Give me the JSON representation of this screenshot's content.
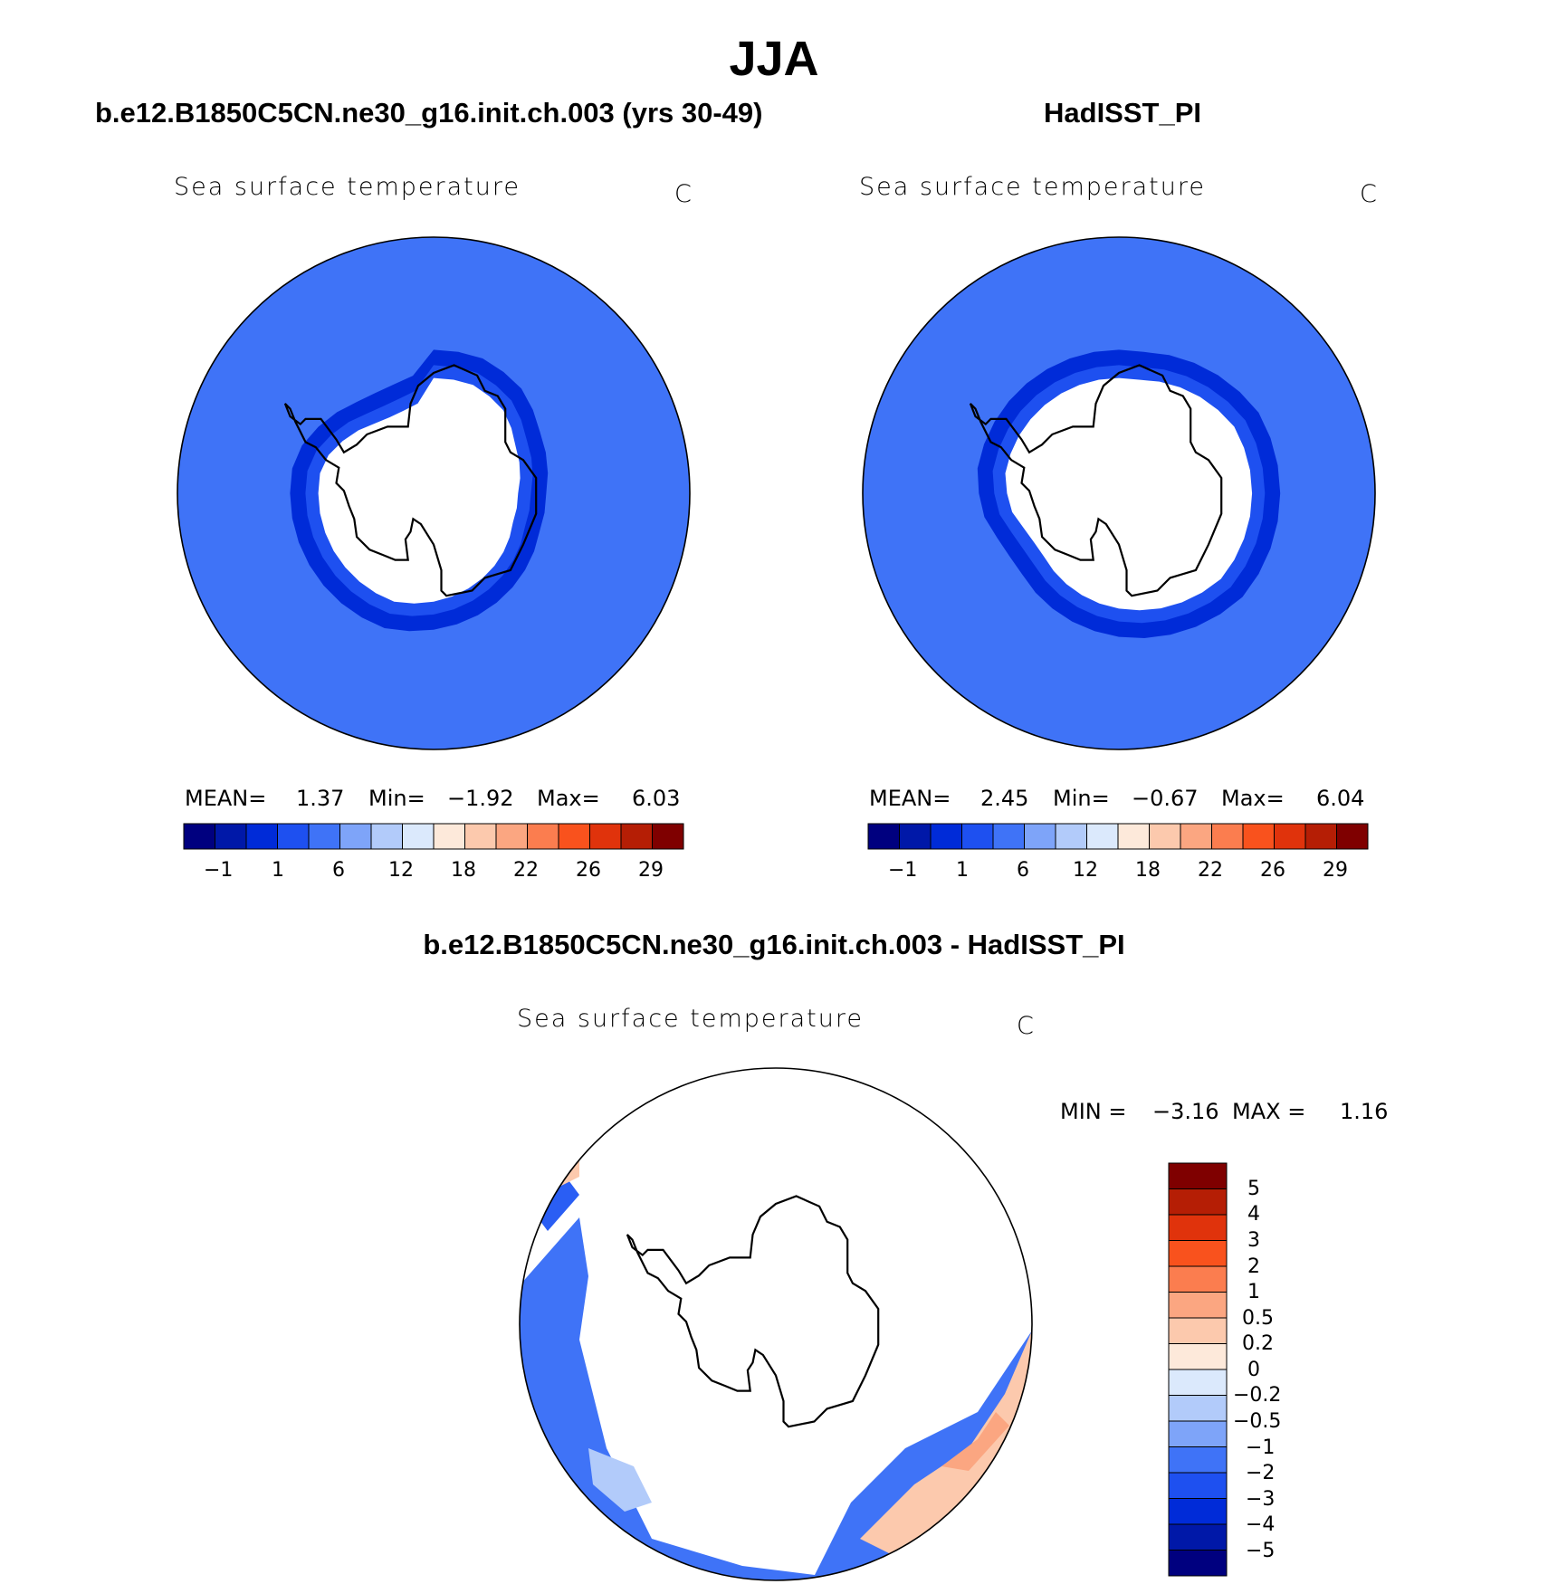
{
  "figure": {
    "title": "JJA",
    "panel_left_title": "b.e12.B1850C5CN.ne30_g16.init.ch.003 (yrs 30-49)",
    "panel_right_title": "HadISST_PI",
    "panel_diff_title": "b.e12.B1850C5CN.ne30_g16.init.ch.003 - HadISST_PI"
  },
  "colors": {
    "scale16": [
      "#00007f",
      "#0018a8",
      "#002bd8",
      "#1e50f0",
      "#3f73f7",
      "#7ea4f9",
      "#b2cbfa",
      "#dbe9fc",
      "#fde9da",
      "#fcc9ad",
      "#fba681",
      "#fb7d4f",
      "#f9521d",
      "#e0330c",
      "#b51e05",
      "#7f0000"
    ],
    "diff16": [
      "#00007f",
      "#0018a8",
      "#002bd8",
      "#1e50f0",
      "#3f73f7",
      "#7ea4f9",
      "#b2cbfa",
      "#dbe9fc",
      "#fde9da",
      "#fcc9ad",
      "#fba681",
      "#fb7d4f",
      "#f9521d",
      "#e0330c",
      "#b51e05",
      "#7f0000"
    ]
  },
  "chart_data": [
    {
      "type": "heatmap",
      "projection": "south-polar-stereographic",
      "title": "Sea surface temperature",
      "units": "C",
      "stats": {
        "mean_label": "MEAN=",
        "mean": "1.37",
        "min_label": "Min=",
        "min": "−1.92",
        "max_label": "Max=",
        "max": "6.03"
      },
      "colorbar_ticks": [
        "−1",
        "1",
        "6",
        "12",
        "18",
        "22",
        "26",
        "29"
      ],
      "ice_edge_latitude_deg": [
        -55,
        -55,
        -55,
        -56,
        -57,
        -59,
        -61,
        -62,
        -63,
        -64,
        -64,
        -64,
        -63,
        -62,
        -61,
        -60,
        -59,
        -58,
        -57,
        -56,
        -55,
        -55,
        -55,
        -55,
        -55,
        -55,
        -55,
        -55,
        -55,
        -56,
        -58,
        -60,
        -62,
        -63,
        -63,
        -62
      ]
    },
    {
      "type": "heatmap",
      "projection": "south-polar-stereographic",
      "title": "Sea surface temperature",
      "units": "C",
      "stats": {
        "mean_label": "MEAN=",
        "mean": "2.45",
        "min_label": "Min=",
        "min": "−0.67",
        "max_label": "Max=",
        "max": "6.04"
      },
      "colorbar_ticks": [
        "−1",
        "1",
        "6",
        "12",
        "18",
        "22",
        "26",
        "29"
      ],
      "ice_edge_latitude_deg": [
        -55,
        -55,
        -54,
        -53,
        -52,
        -51,
        -50,
        -50,
        -50,
        -50,
        -50,
        -50,
        -50,
        -50,
        -51,
        -52,
        -53,
        -54,
        -55,
        -56,
        -57,
        -58,
        -59,
        -60,
        -60,
        -59,
        -57,
        -56,
        -55,
        -55,
        -55,
        -55,
        -55,
        -55,
        -55,
        -55
      ]
    },
    {
      "type": "heatmap",
      "projection": "south-polar-stereographic",
      "title": "Sea surface temperature",
      "units": "C",
      "stats": {
        "min_label": "MIN =",
        "min": "−3.16",
        "max_label": "MAX =",
        "max": "1.16"
      },
      "colorbar_ticks": [
        "5",
        "4",
        "3",
        "2",
        "1",
        "0.5",
        "0.2",
        "0",
        "−0.2",
        "−0.5",
        "−1",
        "−2",
        "−3",
        "−4",
        "−5"
      ]
    }
  ]
}
